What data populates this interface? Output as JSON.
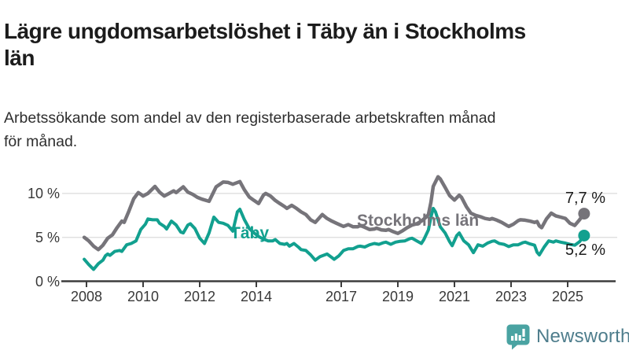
{
  "header": {
    "title": "Lägre ungdomsarbetslöshet i Täby än i Stockholms\nlän",
    "subtitle": "Arbetssökande som andel av den registerbaserade arbetskraften månad\nför månad."
  },
  "chart_data": {
    "type": "line",
    "unit": "%",
    "grid": "horizontal",
    "legend_position": "inline-labels",
    "ylim": [
      0,
      12.5
    ],
    "x_range_years": [
      2007.92,
      2025.58
    ],
    "yticks": [
      {
        "value": 0,
        "label": "0 %"
      },
      {
        "value": 5,
        "label": "5 %"
      },
      {
        "value": 10,
        "label": "10 %"
      }
    ],
    "xticks": [
      {
        "value": 2008,
        "label": "2008"
      },
      {
        "value": 2010,
        "label": "2010"
      },
      {
        "value": 2012,
        "label": "2012"
      },
      {
        "value": 2014,
        "label": "2014"
      },
      {
        "value": 2017,
        "label": "2017"
      },
      {
        "value": 2019,
        "label": "2019"
      },
      {
        "value": 2021,
        "label": "2021"
      },
      {
        "value": 2023,
        "label": "2023"
      },
      {
        "value": 2025,
        "label": "2025"
      }
    ],
    "series": [
      {
        "name": "Stockholms län",
        "color": "#76747A",
        "end_value": 7.7,
        "end_label": "7,7 %",
        "points": [
          [
            2007.92,
            5.0
          ],
          [
            2008.08,
            4.6
          ],
          [
            2008.25,
            4.0
          ],
          [
            2008.42,
            3.6
          ],
          [
            2008.58,
            4.1
          ],
          [
            2008.75,
            4.9
          ],
          [
            2008.92,
            5.3
          ],
          [
            2009.08,
            6.1
          ],
          [
            2009.25,
            6.85
          ],
          [
            2009.33,
            6.7
          ],
          [
            2009.5,
            8.0
          ],
          [
            2009.67,
            9.4
          ],
          [
            2009.83,
            10.1
          ],
          [
            2009.92,
            9.9
          ],
          [
            2010.0,
            9.7
          ],
          [
            2010.17,
            10.0
          ],
          [
            2010.42,
            10.8
          ],
          [
            2010.58,
            10.15
          ],
          [
            2010.75,
            9.7
          ],
          [
            2010.92,
            10.0
          ],
          [
            2011.08,
            10.3
          ],
          [
            2011.17,
            10.1
          ],
          [
            2011.42,
            10.75
          ],
          [
            2011.58,
            10.15
          ],
          [
            2011.75,
            9.9
          ],
          [
            2011.92,
            9.55
          ],
          [
            2012.08,
            9.35
          ],
          [
            2012.33,
            9.1
          ],
          [
            2012.58,
            10.75
          ],
          [
            2012.83,
            11.3
          ],
          [
            2013.0,
            11.25
          ],
          [
            2013.17,
            11.05
          ],
          [
            2013.42,
            11.35
          ],
          [
            2013.58,
            10.4
          ],
          [
            2013.75,
            9.6
          ],
          [
            2013.92,
            9.2
          ],
          [
            2014.08,
            8.85
          ],
          [
            2014.25,
            9.8
          ],
          [
            2014.33,
            10.0
          ],
          [
            2014.5,
            9.7
          ],
          [
            2014.67,
            9.2
          ],
          [
            2014.83,
            8.85
          ],
          [
            2015.0,
            8.5
          ],
          [
            2015.08,
            8.3
          ],
          [
            2015.25,
            8.65
          ],
          [
            2015.42,
            8.3
          ],
          [
            2015.58,
            7.9
          ],
          [
            2015.75,
            7.6
          ],
          [
            2015.92,
            7.0
          ],
          [
            2016.08,
            6.7
          ],
          [
            2016.33,
            7.6
          ],
          [
            2016.5,
            7.15
          ],
          [
            2016.67,
            6.85
          ],
          [
            2016.83,
            6.6
          ],
          [
            2017.0,
            6.35
          ],
          [
            2017.08,
            6.25
          ],
          [
            2017.25,
            6.45
          ],
          [
            2017.42,
            6.2
          ],
          [
            2017.58,
            6.2
          ],
          [
            2017.67,
            6.35
          ],
          [
            2017.83,
            6.15
          ],
          [
            2018.0,
            5.9
          ],
          [
            2018.17,
            5.95
          ],
          [
            2018.25,
            6.05
          ],
          [
            2018.42,
            5.85
          ],
          [
            2018.58,
            5.8
          ],
          [
            2018.67,
            5.9
          ],
          [
            2018.83,
            5.65
          ],
          [
            2019.0,
            5.45
          ],
          [
            2019.17,
            5.75
          ],
          [
            2019.33,
            6.1
          ],
          [
            2019.5,
            6.4
          ],
          [
            2019.67,
            6.55
          ],
          [
            2019.83,
            6.85
          ],
          [
            2020.0,
            7.3
          ],
          [
            2020.08,
            7.6
          ],
          [
            2020.17,
            9.0
          ],
          [
            2020.25,
            10.8
          ],
          [
            2020.42,
            11.9
          ],
          [
            2020.5,
            11.65
          ],
          [
            2020.67,
            10.7
          ],
          [
            2020.83,
            9.75
          ],
          [
            2021.0,
            9.25
          ],
          [
            2021.17,
            9.8
          ],
          [
            2021.25,
            9.55
          ],
          [
            2021.42,
            8.5
          ],
          [
            2021.58,
            7.75
          ],
          [
            2021.75,
            7.5
          ],
          [
            2021.92,
            7.35
          ],
          [
            2022.08,
            7.15
          ],
          [
            2022.25,
            7.05
          ],
          [
            2022.33,
            7.15
          ],
          [
            2022.5,
            6.95
          ],
          [
            2022.67,
            6.7
          ],
          [
            2022.83,
            6.4
          ],
          [
            2022.92,
            6.25
          ],
          [
            2023.08,
            6.5
          ],
          [
            2023.25,
            6.9
          ],
          [
            2023.33,
            7.0
          ],
          [
            2023.5,
            6.95
          ],
          [
            2023.67,
            6.85
          ],
          [
            2023.83,
            6.7
          ],
          [
            2023.92,
            6.8
          ],
          [
            2024.0,
            6.3
          ],
          [
            2024.08,
            6.1
          ],
          [
            2024.25,
            7.1
          ],
          [
            2024.42,
            7.75
          ],
          [
            2024.58,
            7.45
          ],
          [
            2024.75,
            7.3
          ],
          [
            2024.92,
            7.15
          ],
          [
            2025.08,
            6.6
          ],
          [
            2025.25,
            6.35
          ],
          [
            2025.42,
            7.0
          ],
          [
            2025.58,
            7.7
          ]
        ]
      },
      {
        "name": "Täby",
        "color": "#12A08F",
        "end_value": 5.2,
        "end_label": "5,2 %",
        "points": [
          [
            2007.92,
            2.5
          ],
          [
            2008.08,
            1.9
          ],
          [
            2008.25,
            1.35
          ],
          [
            2008.42,
            2.0
          ],
          [
            2008.58,
            2.4
          ],
          [
            2008.67,
            2.9
          ],
          [
            2008.75,
            3.1
          ],
          [
            2008.83,
            2.95
          ],
          [
            2009.0,
            3.4
          ],
          [
            2009.17,
            3.5
          ],
          [
            2009.25,
            3.4
          ],
          [
            2009.42,
            4.15
          ],
          [
            2009.58,
            4.3
          ],
          [
            2009.75,
            4.6
          ],
          [
            2009.92,
            5.9
          ],
          [
            2010.08,
            6.5
          ],
          [
            2010.17,
            7.1
          ],
          [
            2010.33,
            7.0
          ],
          [
            2010.5,
            7.0
          ],
          [
            2010.58,
            6.6
          ],
          [
            2010.75,
            6.25
          ],
          [
            2010.83,
            5.95
          ],
          [
            2011.0,
            6.85
          ],
          [
            2011.17,
            6.4
          ],
          [
            2011.33,
            5.6
          ],
          [
            2011.42,
            5.5
          ],
          [
            2011.58,
            6.4
          ],
          [
            2011.67,
            6.55
          ],
          [
            2011.83,
            6.0
          ],
          [
            2012.0,
            4.9
          ],
          [
            2012.17,
            4.3
          ],
          [
            2012.33,
            5.5
          ],
          [
            2012.5,
            7.3
          ],
          [
            2012.67,
            6.7
          ],
          [
            2012.83,
            6.6
          ],
          [
            2013.0,
            6.35
          ],
          [
            2013.17,
            5.7
          ],
          [
            2013.33,
            7.9
          ],
          [
            2013.42,
            8.2
          ],
          [
            2013.58,
            7.0
          ],
          [
            2013.75,
            6.0
          ],
          [
            2013.92,
            5.5
          ],
          [
            2014.08,
            5.1
          ],
          [
            2014.25,
            4.8
          ],
          [
            2014.42,
            4.6
          ],
          [
            2014.58,
            4.6
          ],
          [
            2014.67,
            4.75
          ],
          [
            2014.83,
            4.3
          ],
          [
            2015.0,
            4.2
          ],
          [
            2015.08,
            4.3
          ],
          [
            2015.17,
            4.0
          ],
          [
            2015.33,
            4.3
          ],
          [
            2015.5,
            3.85
          ],
          [
            2015.58,
            3.6
          ],
          [
            2015.75,
            3.5
          ],
          [
            2015.92,
            3.0
          ],
          [
            2016.08,
            2.4
          ],
          [
            2016.25,
            2.8
          ],
          [
            2016.5,
            3.1
          ],
          [
            2016.67,
            2.7
          ],
          [
            2016.75,
            2.5
          ],
          [
            2016.92,
            2.9
          ],
          [
            2017.08,
            3.5
          ],
          [
            2017.25,
            3.7
          ],
          [
            2017.42,
            3.7
          ],
          [
            2017.58,
            3.95
          ],
          [
            2017.67,
            4.0
          ],
          [
            2017.83,
            3.9
          ],
          [
            2018.0,
            4.15
          ],
          [
            2018.17,
            4.3
          ],
          [
            2018.33,
            4.2
          ],
          [
            2018.5,
            4.4
          ],
          [
            2018.58,
            4.45
          ],
          [
            2018.75,
            4.2
          ],
          [
            2018.92,
            4.45
          ],
          [
            2019.08,
            4.55
          ],
          [
            2019.25,
            4.6
          ],
          [
            2019.42,
            4.85
          ],
          [
            2019.5,
            4.9
          ],
          [
            2019.67,
            4.6
          ],
          [
            2019.83,
            4.3
          ],
          [
            2019.92,
            4.75
          ],
          [
            2020.08,
            5.85
          ],
          [
            2020.17,
            7.3
          ],
          [
            2020.25,
            8.3
          ],
          [
            2020.33,
            7.9
          ],
          [
            2020.5,
            6.2
          ],
          [
            2020.67,
            5.5
          ],
          [
            2020.83,
            4.5
          ],
          [
            2020.92,
            4.05
          ],
          [
            2021.08,
            5.2
          ],
          [
            2021.17,
            5.5
          ],
          [
            2021.33,
            4.6
          ],
          [
            2021.5,
            4.15
          ],
          [
            2021.67,
            3.25
          ],
          [
            2021.83,
            4.15
          ],
          [
            2022.0,
            4.0
          ],
          [
            2022.17,
            4.35
          ],
          [
            2022.33,
            4.55
          ],
          [
            2022.42,
            4.6
          ],
          [
            2022.58,
            4.3
          ],
          [
            2022.75,
            4.2
          ],
          [
            2022.92,
            3.95
          ],
          [
            2023.08,
            4.15
          ],
          [
            2023.25,
            4.15
          ],
          [
            2023.42,
            4.4
          ],
          [
            2023.5,
            4.45
          ],
          [
            2023.67,
            4.25
          ],
          [
            2023.83,
            4.1
          ],
          [
            2023.92,
            3.3
          ],
          [
            2024.0,
            3.0
          ],
          [
            2024.17,
            3.9
          ],
          [
            2024.33,
            4.6
          ],
          [
            2024.5,
            4.45
          ],
          [
            2024.58,
            4.6
          ],
          [
            2024.75,
            4.45
          ],
          [
            2024.92,
            4.35
          ],
          [
            2025.08,
            4.2
          ],
          [
            2025.25,
            4.1
          ],
          [
            2025.42,
            4.5
          ],
          [
            2025.58,
            5.2
          ]
        ]
      }
    ],
    "colors": {
      "gridline": "#E1E1E1",
      "axis": "#3D3D3D",
      "tick_label": "#383838",
      "value_label": "#1C1C1C"
    }
  },
  "logo": {
    "brand": "Newsworthy",
    "icon": "bar-chart-speech-bubble-icon",
    "icon_color": "#4AA3A2",
    "text_color": "#4E7D8C"
  }
}
